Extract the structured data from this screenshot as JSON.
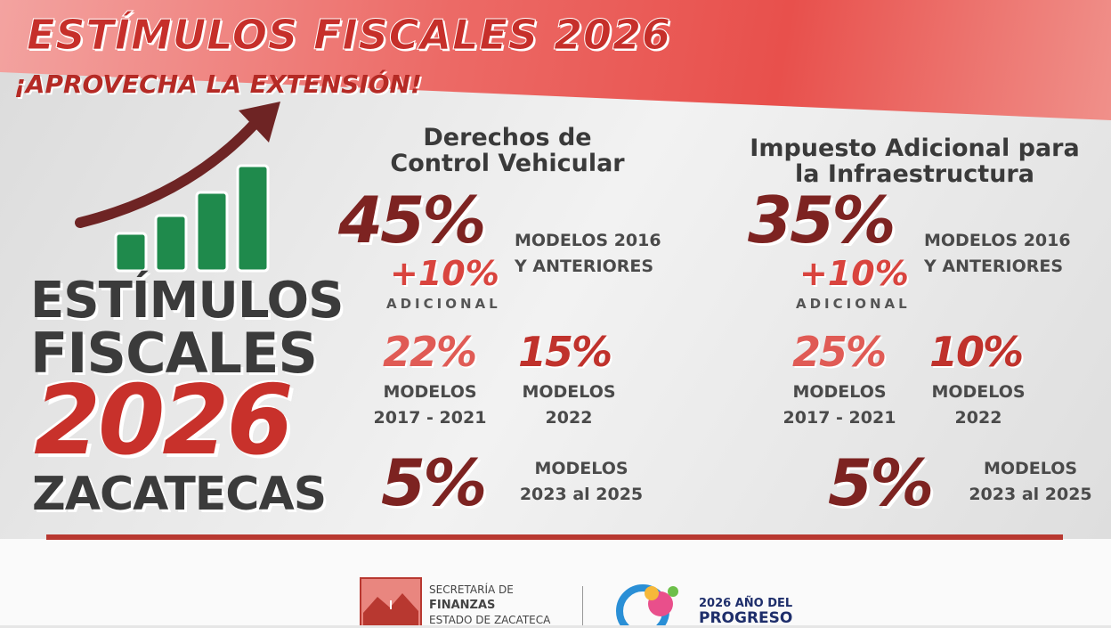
{
  "header": {
    "title": "ESTÍMULOS FISCALES 2026",
    "tagline": "¡APROVECHA LA EXTENSIÓN!"
  },
  "badge": {
    "line1": "ESTÍMULOS",
    "line2": "FISCALES",
    "year": "2026",
    "place": "ZACATECAS"
  },
  "sections": [
    {
      "title": [
        "Derechos de",
        "Control Vehicular"
      ],
      "main": {
        "percent": "45%",
        "extra": "+10%",
        "extra_label": "ADICIONAL",
        "models": [
          "MODELOS 2016",
          "Y ANTERIORES"
        ]
      },
      "tiers": [
        {
          "percent": "22%",
          "models": [
            "MODELOS",
            "2017 - 2021"
          ]
        },
        {
          "percent": "15%",
          "models": [
            "MODELOS",
            "2022"
          ]
        },
        {
          "percent": "5%",
          "models": [
            "MODELOS",
            "2023 al 2025"
          ]
        }
      ]
    },
    {
      "title": [
        "Impuesto Adicional para",
        "la Infraestructura"
      ],
      "main": {
        "percent": "35%",
        "extra": "+10%",
        "extra_label": "ADICIONAL",
        "models": [
          "MODELOS 2016",
          "Y ANTERIORES"
        ]
      },
      "tiers": [
        {
          "percent": "25%",
          "models": [
            "MODELOS",
            "2017 - 2021"
          ]
        },
        {
          "percent": "10%",
          "models": [
            "MODELOS",
            "2022"
          ]
        },
        {
          "percent": "5%",
          "models": [
            "MODELOS",
            "2023 al 2025"
          ]
        }
      ]
    }
  ],
  "footer": {
    "agency": [
      "SECRETARÍA DE",
      "FINANZAS",
      "ESTADO DE ZACATECA"
    ],
    "slogan": [
      "2026 AÑO DEL",
      "PROGRESO"
    ]
  }
}
